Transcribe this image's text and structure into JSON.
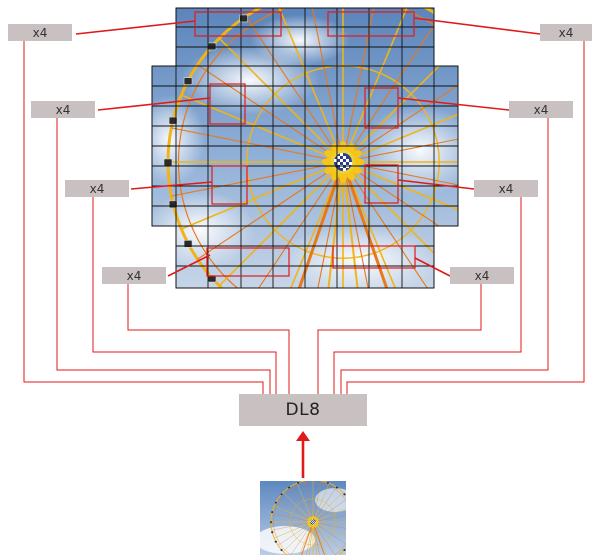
{
  "diagram": {
    "multiplier_label": "x4",
    "core_label": "DL8",
    "x4_boxes": [
      {
        "id": "left-1",
        "label": "x4"
      },
      {
        "id": "left-2",
        "label": "x4"
      },
      {
        "id": "left-3",
        "label": "x4"
      },
      {
        "id": "left-4",
        "label": "x4"
      },
      {
        "id": "right-1",
        "label": "x4"
      },
      {
        "id": "right-2",
        "label": "x4"
      },
      {
        "id": "right-3",
        "label": "x4"
      },
      {
        "id": "right-4",
        "label": "x4"
      }
    ],
    "colors": {
      "connector": "#e01a1a",
      "label_box": "#c9c1c1",
      "sky": "#5f86b8",
      "wheel": "#f0b419",
      "grid": "#111111"
    }
  }
}
